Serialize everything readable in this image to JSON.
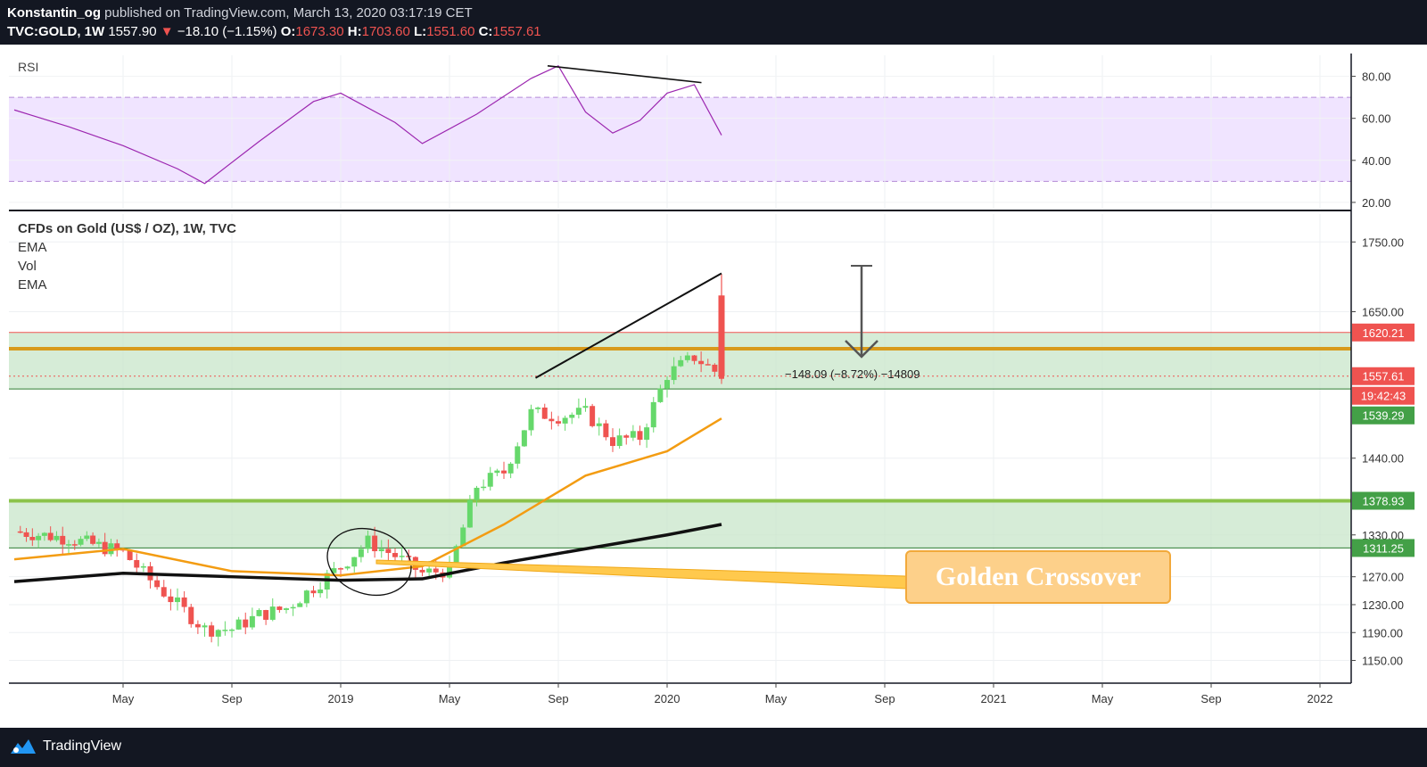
{
  "header": {
    "line1_author": "Konstantin_og",
    "line1_rest": "published on TradingView.com, March 13, 2020 03:17:19 CET",
    "symbol": "TVC:GOLD, 1W",
    "last": "1557.90",
    "change_arrow": "▼",
    "change": "−18.10 (−1.15%)",
    "o_label": "O:",
    "o_value": "1673.30",
    "h_label": "H:",
    "h_value": "1703.60",
    "l_label": "L:",
    "l_value": "1551.60",
    "c_label": "C:",
    "c_value": "1557.61"
  },
  "footer": {
    "brand": "TradingView",
    "logo_icon": "tradingview-logo-icon"
  },
  "rsi_pane": {
    "label": "RSI",
    "ticks": [
      "80.00",
      "60.00",
      "40.00",
      "20.00"
    ]
  },
  "price_pane": {
    "legend": [
      "CFDs on Gold (US$ / OZ), 1W, TVC",
      "EMA",
      "Vol",
      "EMA"
    ],
    "ticks": [
      "1750.00",
      "1650.00",
      "1440.00",
      "1330.00",
      "1270.00",
      "1230.00",
      "1190.00",
      "1150.00"
    ],
    "badges": [
      {
        "text": "1620.21",
        "color": "#ef5350"
      },
      {
        "text": "1557.61",
        "color": "#ef5350"
      },
      {
        "text": "19:42:43",
        "color": "#ef5350"
      },
      {
        "text": "1539.29",
        "color": "#43a047"
      },
      {
        "text": "1378.93",
        "color": "#43a047"
      },
      {
        "text": "1311.25",
        "color": "#43a047"
      }
    ],
    "measure_label": "−148.09 (−8.72%) −14809",
    "callout": "Golden Crossover"
  },
  "x_axis": [
    "May",
    "Sep",
    "2019",
    "May",
    "Sep",
    "2020",
    "May",
    "Sep",
    "2021",
    "May",
    "Sep",
    "2022"
  ],
  "chart_data": {
    "type": "candlestick",
    "interval": "1W",
    "series": [
      {
        "name": "Price (weekly closes, approx.)",
        "x": [
          "2018-01",
          "2018-03",
          "2018-05",
          "2018-06",
          "2018-07",
          "2018-08",
          "2018-09",
          "2018-10",
          "2018-11",
          "2018-12",
          "2019-01",
          "2019-02",
          "2019-03",
          "2019-04",
          "2019-05",
          "2019-06",
          "2019-07",
          "2019-08",
          "2019-09",
          "2019-10",
          "2019-11",
          "2019-12",
          "2020-01",
          "2020-02",
          "2020-03"
        ],
        "values": [
          1335,
          1325,
          1305,
          1265,
          1230,
          1195,
          1195,
          1215,
          1225,
          1255,
          1285,
          1320,
          1300,
          1275,
          1280,
          1400,
          1420,
          1505,
          1500,
          1505,
          1465,
          1470,
          1560,
          1585,
          1558
        ]
      },
      {
        "name": "EMA (fast)",
        "x": [
          "2018-01",
          "2018-05",
          "2018-09",
          "2019-01",
          "2019-04",
          "2019-07",
          "2019-10",
          "2020-01",
          "2020-03"
        ],
        "values": [
          1295,
          1310,
          1278,
          1272,
          1285,
          1345,
          1415,
          1450,
          1497
        ]
      },
      {
        "name": "EMA (slow)",
        "x": [
          "2018-01",
          "2018-05",
          "2018-09",
          "2019-01",
          "2019-04",
          "2019-07",
          "2019-10",
          "2020-01",
          "2020-03"
        ],
        "values": [
          1263,
          1275,
          1270,
          1265,
          1267,
          1290,
          1310,
          1330,
          1345
        ]
      },
      {
        "name": "RSI",
        "x": [
          "2018-01",
          "2018-03",
          "2018-05",
          "2018-07",
          "2018-08",
          "2018-10",
          "2018-12",
          "2019-01",
          "2019-03",
          "2019-04",
          "2019-06",
          "2019-08",
          "2019-09",
          "2019-10",
          "2019-11",
          "2019-12",
          "2020-01",
          "2020-02",
          "2020-03"
        ],
        "values": [
          64,
          56,
          47,
          36,
          29,
          49,
          68,
          72,
          58,
          48,
          62,
          79,
          85,
          63,
          53,
          59,
          72,
          76,
          52
        ]
      }
    ],
    "ylim_price": [
      1120,
      1790
    ],
    "ylim_rsi": [
      17,
      90
    ],
    "zones": [
      {
        "from": 1539.29,
        "to": 1620.21,
        "color": "#c8e6c9"
      },
      {
        "from": 1311.25,
        "to": 1378.93,
        "color": "#c8e6c9"
      }
    ],
    "annotations": [
      "Golden Crossover",
      "−148.09 (−8.72%) −14809"
    ],
    "grid": true,
    "legend_position": "top-left",
    "colors": {
      "up": "#66d86b",
      "down": "#ef5350",
      "ema_fast": "#f39c12",
      "ema_slow": "#111111",
      "rsi": "#9c27b0",
      "rsi_band": "#f0e4ff"
    }
  }
}
